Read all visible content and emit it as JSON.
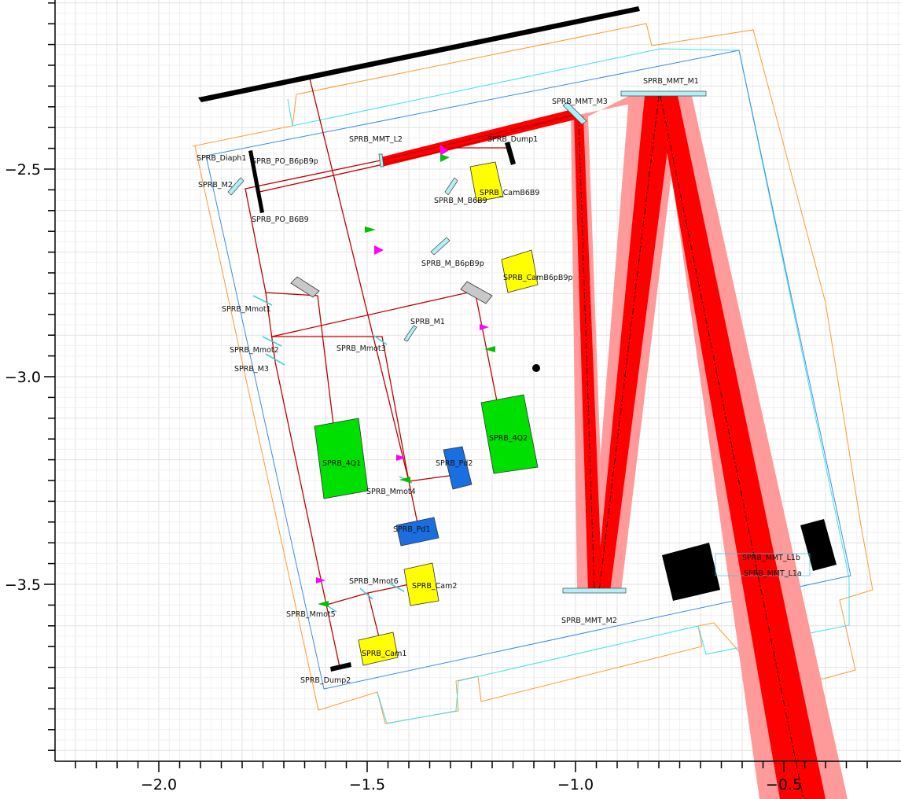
{
  "axes": {
    "x_ticks": [
      {
        "value": -2.0,
        "label": "−2.0"
      },
      {
        "value": -1.5,
        "label": "−1.5"
      },
      {
        "value": -1.0,
        "label": "−1.0"
      },
      {
        "value": -0.5,
        "label": "−0.5"
      }
    ],
    "y_ticks": [
      {
        "value": -2.5,
        "label": "−2.5"
      },
      {
        "value": -3.0,
        "label": "−3.0"
      },
      {
        "value": -3.5,
        "label": "−3.5"
      }
    ],
    "xlim": [
      -2.23,
      -0.23
    ],
    "ylim": [
      -3.92,
      -2.0
    ],
    "grid": true
  },
  "labels": [
    {
      "id": "SPRB_MMT_M1",
      "text": "SPRB_MMT_M1"
    },
    {
      "id": "SPRB_MMT_M3",
      "text": "SPRB_MMT_M3"
    },
    {
      "id": "SPRB_MMT_L2",
      "text": "SPRB_MMT_L2"
    },
    {
      "id": "SPRB_Dump1",
      "text": "SPRB_Dump1"
    },
    {
      "id": "SPRB_Diaph1",
      "text": "SPRB_Diaph1"
    },
    {
      "id": "SPRB_PO_B6pB9p",
      "text": "SPRB_PO_B6pB9p"
    },
    {
      "id": "SPRB_M2",
      "text": "SPRB_M2"
    },
    {
      "id": "SPRB_CamB6B9",
      "text": "SPRB_CamB6B9"
    },
    {
      "id": "SPRB_M_B6B9",
      "text": "SPRB_M_B6B9"
    },
    {
      "id": "SPRB_PO_B6B9",
      "text": "SPRB_PO_B6B9"
    },
    {
      "id": "SPRB_M_B6pB9p",
      "text": "SPRB_M_B6pB9p"
    },
    {
      "id": "SPRB_CamB6pB9p",
      "text": "SPRB_CamB6pB9p"
    },
    {
      "id": "SPRB_Mmot1",
      "text": "SPRB_Mmot1"
    },
    {
      "id": "SPRB_M1",
      "text": "SPRB_M1"
    },
    {
      "id": "SPRB_Mmot2",
      "text": "SPRB_Mmot2"
    },
    {
      "id": "SPRB_Mmot3",
      "text": "SPRB_Mmot3"
    },
    {
      "id": "SPRB_M3",
      "text": "SPRB_M3"
    },
    {
      "id": "SPRB_4Q2",
      "text": "SPRB_4Q2"
    },
    {
      "id": "SPRB_4Q1",
      "text": "SPRB_4Q1"
    },
    {
      "id": "SPRB_Pd2",
      "text": "SPRB_Pd2"
    },
    {
      "id": "SPRB_Mmot4",
      "text": "SPRB_Mmot4"
    },
    {
      "id": "SPRB_Pd1",
      "text": "SPRB_Pd1"
    },
    {
      "id": "SPRB_MMT_L1b",
      "text": "SPRB_MMT_L1b"
    },
    {
      "id": "SPRB_MMT_L1a",
      "text": "SPRB_MMT_L1a"
    },
    {
      "id": "SPRB_Mmot6",
      "text": "SPRB_Mmot6"
    },
    {
      "id": "SPRB_Cam2",
      "text": "SPRB_Cam2"
    },
    {
      "id": "SPRB_Mmot5",
      "text": "SPRB_Mmot5"
    },
    {
      "id": "SPRB_MMT_M2",
      "text": "SPRB_MMT_M2"
    },
    {
      "id": "SPRB_Cam1",
      "text": "SPRB_Cam1"
    },
    {
      "id": "SPRB_Dump2",
      "text": "SPRB_Dump2"
    }
  ],
  "colors": {
    "beam_core": "#ff0000",
    "beam_halo": "#ff9a9a",
    "camera": "#ffff00",
    "quad_detector": "#00e000",
    "photodiode": "#1a6fe0",
    "dump": "#000000",
    "motor_marker": "#ff00ff",
    "outline_orange": "#ff9a30",
    "outline_cyan": "#40e0f0",
    "outline_blue": "#3a8ee6",
    "optic": "#b0f0f8"
  }
}
